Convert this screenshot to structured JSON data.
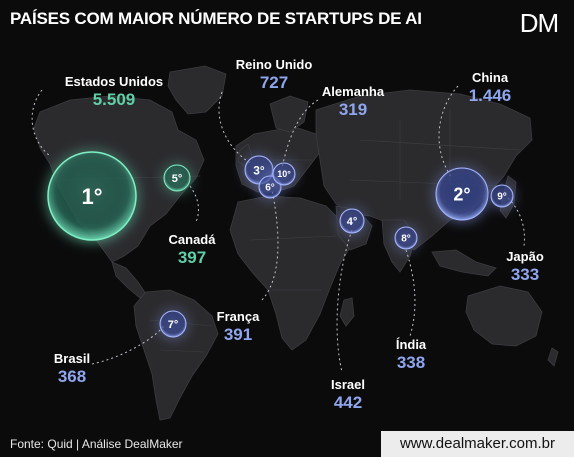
{
  "title": "PAÍSES COM MAIOR NÚMERO DE STARTUPS DE AI",
  "logo_text": "DM",
  "colors": {
    "green": "#5fcfa6",
    "blue": "#8fa6ee",
    "background": "#0b0b0c",
    "land": "#2a2a2d"
  },
  "countries": [
    {
      "name": "Estados Unidos",
      "value": "5.509",
      "rank": "1°",
      "color": "green"
    },
    {
      "name": "China",
      "value": "1.446",
      "rank": "2°",
      "color": "blue"
    },
    {
      "name": "Reino Unido",
      "value": "727",
      "rank": "3°",
      "color": "blue"
    },
    {
      "name": "Israel",
      "value": "442",
      "rank": "4°",
      "color": "blue"
    },
    {
      "name": "Canadá",
      "value": "397",
      "rank": "5°",
      "color": "green"
    },
    {
      "name": "França",
      "value": "391",
      "rank": "6°",
      "color": "blue"
    },
    {
      "name": "Brasil",
      "value": "368",
      "rank": "7°",
      "color": "blue"
    },
    {
      "name": "Índia",
      "value": "338",
      "rank": "8°",
      "color": "blue"
    },
    {
      "name": "Japão",
      "value": "333",
      "rank": "9°",
      "color": "blue"
    },
    {
      "name": "Alemanha",
      "value": "319",
      "rank": "10°",
      "color": "blue"
    }
  ],
  "footer": {
    "source": "Fonte: Quid | Análise DealMaker",
    "website": "www.dealmaker.com.br"
  }
}
